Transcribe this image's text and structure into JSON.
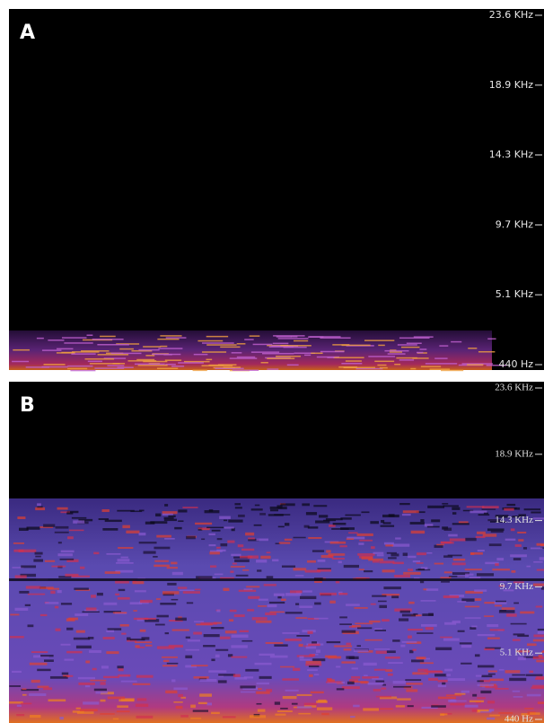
{
  "panels": [
    {
      "label": "A",
      "ticks": [
        "23.6  KHz",
        "18.9  KHz",
        "14.3  KHz",
        "9.7  KHz",
        "5.1  KHz",
        "440  Hz"
      ]
    },
    {
      "label": "B",
      "ticks": [
        "23.6  KHz",
        "18.9  KHz",
        "14.3  KHz",
        "9.7  KHz",
        "5.1  KHz",
        "440  Hz"
      ]
    }
  ]
}
